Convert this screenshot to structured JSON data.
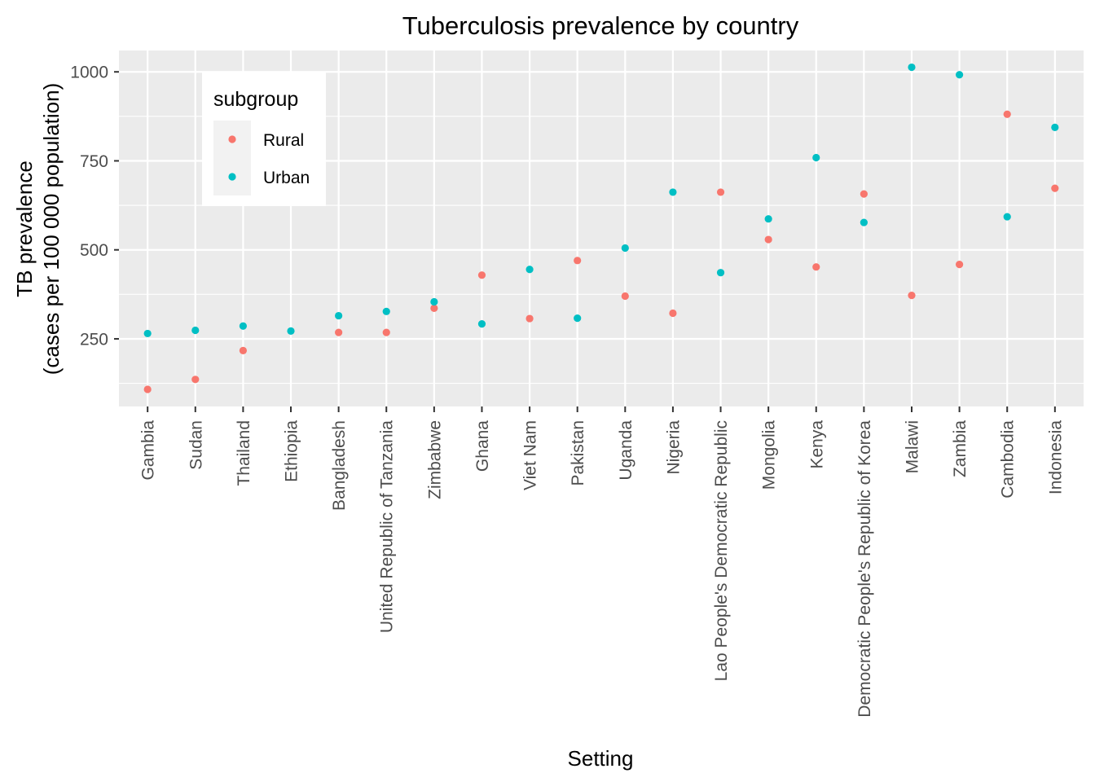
{
  "chart_data": {
    "type": "scatter",
    "title": "Tuberculosis prevalence by country",
    "xlabel": "Setting",
    "ylabel_line1": "TB prevalence",
    "ylabel_line2": "(cases per 100 000 population)",
    "categories": [
      "Gambia",
      "Sudan",
      "Thailand",
      "Ethiopia",
      "Bangladesh",
      "United Republic of Tanzania",
      "Zimbabwe",
      "Ghana",
      "Viet Nam",
      "Pakistan",
      "Uganda",
      "Nigeria",
      "Lao People's Democratic Republic",
      "Mongolia",
      "Kenya",
      "Democratic People's Republic of Korea",
      "Malawi",
      "Zambia",
      "Cambodia",
      "Indonesia"
    ],
    "series": [
      {
        "name": "Rural",
        "color": "#F8766D",
        "values": [
          108,
          136,
          217,
          null,
          268,
          268,
          336,
          429,
          307,
          470,
          370,
          322,
          662,
          529,
          452,
          657,
          372,
          459,
          881,
          673
        ]
      },
      {
        "name": "Urban",
        "color": "#00BFC4",
        "values": [
          265,
          274,
          286,
          272,
          315,
          327,
          354,
          292,
          445,
          308,
          505,
          662,
          436,
          587,
          759,
          577,
          1013,
          992,
          593,
          844
        ]
      }
    ],
    "yticks": [
      250,
      500,
      750,
      1000
    ],
    "ylim": [
      60,
      1060
    ],
    "grid": true,
    "legend": {
      "title": "subgroup",
      "position": "top-left",
      "entries": [
        "Rural",
        "Urban"
      ]
    }
  }
}
